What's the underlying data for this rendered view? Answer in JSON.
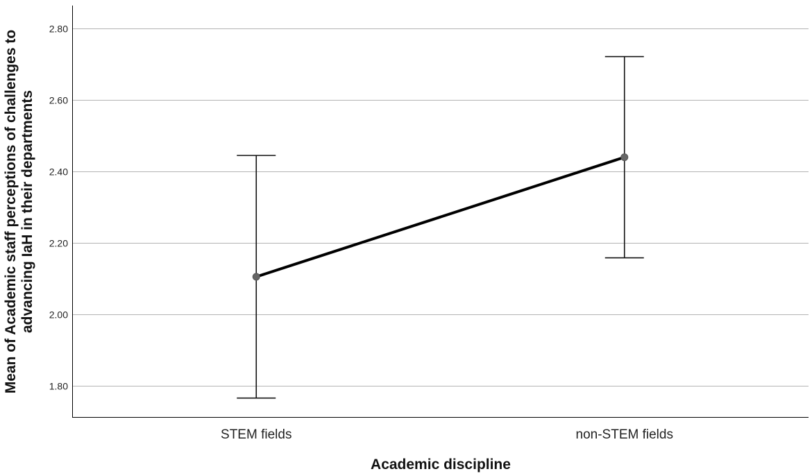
{
  "chart_data": {
    "type": "line",
    "title": "",
    "xlabel": "Academic discipline",
    "ylabel_lines": [
      "Mean of Academic staff perceptions of challenges to",
      "advancing IaH in their departments"
    ],
    "categories": [
      "STEM fields",
      "non-STEM fields"
    ],
    "series": [
      {
        "values": [
          2.105,
          2.44
        ],
        "error_low": [
          1.765,
          2.158
        ],
        "error_high": [
          2.445,
          2.722
        ]
      }
    ],
    "ylim": [
      1.71,
      2.865
    ],
    "yticks": [
      "1.80",
      "2.00",
      "2.20",
      "2.40",
      "2.60",
      "2.80"
    ],
    "grid": true,
    "legend": "none"
  }
}
